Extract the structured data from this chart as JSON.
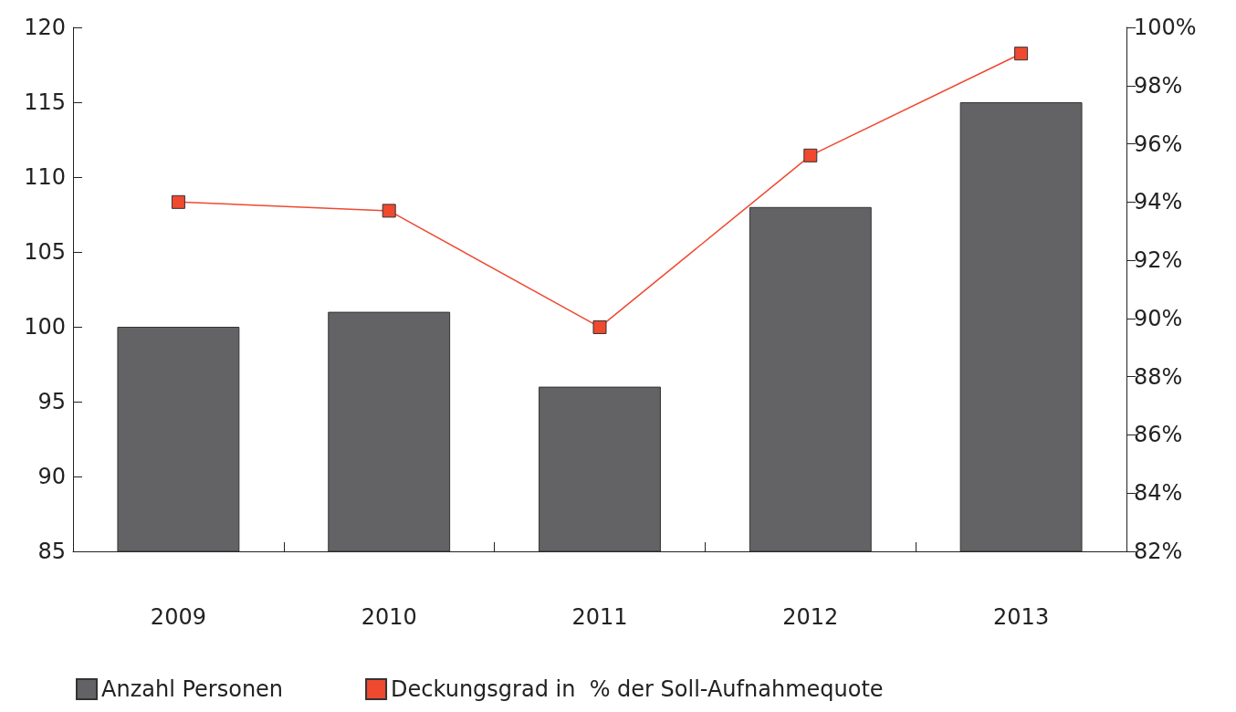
{
  "chart_data": {
    "type": "bar",
    "categories": [
      "2009",
      "2010",
      "2011",
      "2012",
      "2013"
    ],
    "series": [
      {
        "name": "Anzahl Personen",
        "color": "#636365",
        "values": [
          100,
          101,
          96,
          108,
          115
        ]
      },
      {
        "name": "Deckungsgrad in  % der Soll-Aufnahmequote",
        "type": "line",
        "axis": "y2",
        "color": "#ef4930",
        "values": [
          94.0,
          93.7,
          89.7,
          95.6,
          99.1
        ]
      }
    ],
    "ylim": [
      85,
      120
    ],
    "yticks": [
      85,
      90,
      95,
      100,
      105,
      110,
      115,
      120
    ],
    "y2lim": [
      82,
      100
    ],
    "y2ticks": [
      {
        "value": 82,
        "label": "82%"
      },
      {
        "value": 84,
        "label": "84%"
      },
      {
        "value": 86,
        "label": "86%"
      },
      {
        "value": 88,
        "label": "88%"
      },
      {
        "value": 90,
        "label": "90%"
      },
      {
        "value": 92,
        "label": "92%"
      },
      {
        "value": 94,
        "label": "94%"
      },
      {
        "value": 96,
        "label": "96%"
      },
      {
        "value": 98,
        "label": "98%"
      },
      {
        "value": 100,
        "label": "100%"
      }
    ],
    "grid": false,
    "legend": "bottom left",
    "marker": "square",
    "line_style": "solid"
  }
}
